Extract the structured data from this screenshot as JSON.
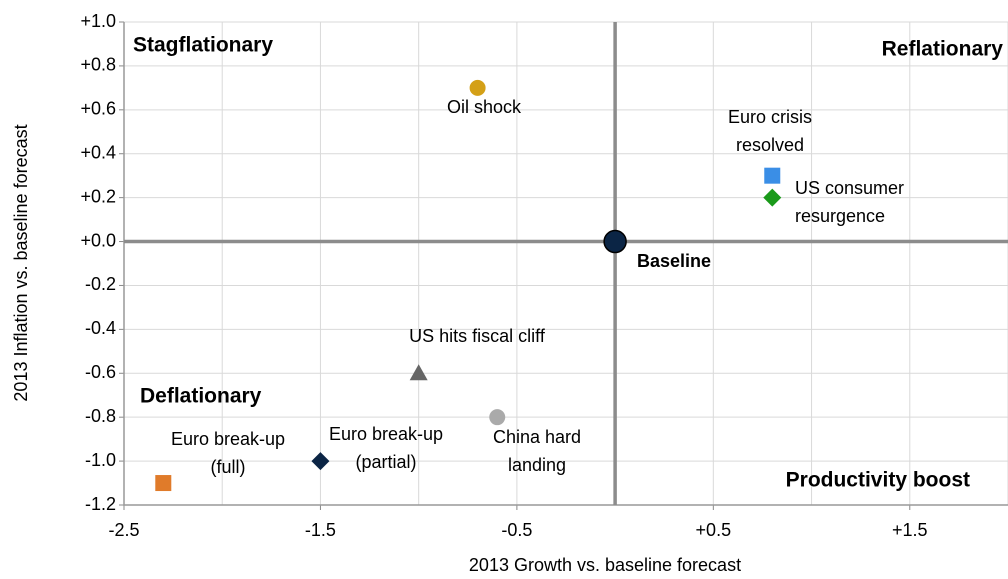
{
  "chart_data": {
    "type": "scatter",
    "xlabel": "2013 Growth vs. baseline forecast",
    "ylabel": "2013 Inflation vs. baseline forecast",
    "xlim": [
      -2.5,
      2.0
    ],
    "ylim": [
      -1.2,
      1.0
    ],
    "xticks": [
      -2.5,
      -1.5,
      -0.5,
      {
        "value": 0.5,
        "label": "+0.5"
      },
      {
        "value": 1.5,
        "label": "+1.5"
      }
    ],
    "xgrid_minor": [
      -2,
      -1,
      0,
      1,
      2
    ],
    "yticks": [
      {
        "value": 1.0,
        "label": "+1.0"
      },
      {
        "value": 0.8,
        "label": "+0.8"
      },
      {
        "value": 0.6,
        "label": "+0.6"
      },
      {
        "value": 0.4,
        "label": "+0.4"
      },
      {
        "value": 0.2,
        "label": "+0.2"
      },
      {
        "value": 0,
        "label": "+0.0"
      },
      {
        "value": -0.2,
        "label": "-0.2"
      },
      {
        "value": -0.4,
        "label": "-0.4"
      },
      {
        "value": -0.6,
        "label": "-0.6"
      },
      {
        "value": -0.8,
        "label": "-0.8"
      },
      {
        "value": -1.0,
        "label": "-1.0"
      },
      {
        "value": -1.2,
        "label": "-1.2"
      }
    ],
    "positive_tick_color": "#1a9a1a",
    "negative_tick_color": "#e01010",
    "grid": true,
    "quadrants": [
      {
        "text": "Stagflationary",
        "color": "#e8782a"
      },
      {
        "text": "Reflationary",
        "color": "#3a8ee6"
      },
      {
        "text": "Deflationary",
        "color": "#e01010"
      },
      {
        "text": "Productivity boost",
        "color": "#1a9a1a"
      }
    ],
    "points": [
      {
        "label": [
          "Oil shock"
        ],
        "x": -0.7,
        "y": 0.7,
        "marker": "circle",
        "color": "#d4a017"
      },
      {
        "label": [
          "Euro crisis",
          "resolved"
        ],
        "x": 0.8,
        "y": 0.3,
        "marker": "square",
        "color": "#3a8ee6"
      },
      {
        "label": [
          "US consumer",
          "resurgence"
        ],
        "x": 0.8,
        "y": 0.2,
        "marker": "diamond",
        "color": "#1a9a1a"
      },
      {
        "label": [
          "Baseline"
        ],
        "x": 0,
        "y": 0,
        "marker": "big-circle",
        "color": "#0b2545"
      },
      {
        "label": [
          "US hits fiscal cliff"
        ],
        "x": -1.0,
        "y": -0.6,
        "marker": "triangle",
        "color": "#666666"
      },
      {
        "label": [
          "China hard",
          "landing"
        ],
        "x": -0.6,
        "y": -0.8,
        "marker": "circle",
        "color": "#aaaaaa"
      },
      {
        "label": [
          "Euro break-up",
          "(partial)"
        ],
        "x": -1.5,
        "y": -1.0,
        "marker": "diamond",
        "color": "#0b2545"
      },
      {
        "label": [
          "Euro break-up",
          "(full)"
        ],
        "x": -2.3,
        "y": -1.1,
        "marker": "square",
        "color": "#e07b2a"
      }
    ]
  }
}
